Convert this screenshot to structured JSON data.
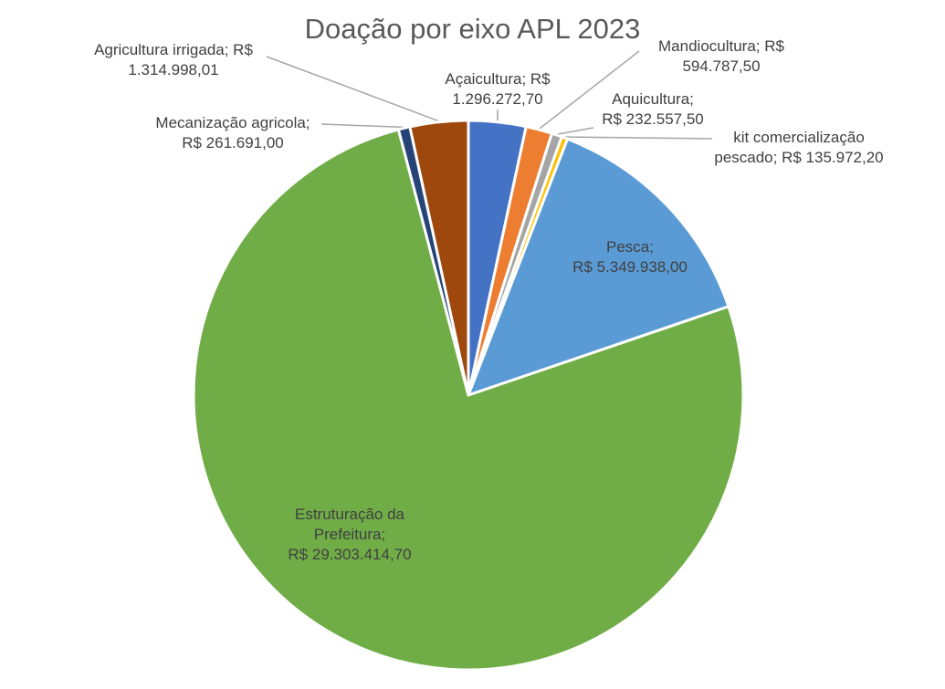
{
  "chart_data": {
    "type": "pie",
    "title": "Doação por eixo APL 2023",
    "slices": [
      {
        "label": "Açaicultura",
        "value": 1296272.7,
        "display_value": "R$ 1.296.272,70",
        "color": "#4472c4"
      },
      {
        "label": "Mandiocultura",
        "value": 594787.5,
        "display_value": "R$ 594.787,50",
        "color": "#ed7d31"
      },
      {
        "label": "Aquicultura",
        "value": 232557.5,
        "display_value": "R$ 232.557,50",
        "color": "#a5a5a5"
      },
      {
        "label": "kit comercialização pescado",
        "value": 135972.2,
        "display_value": "R$ 135.972,20",
        "color": "#ffc000"
      },
      {
        "label": "Pesca",
        "value": 5349938.0,
        "display_value": "R$ 5.349.938,00",
        "color": "#5b9bd5"
      },
      {
        "label": "Estruturação da Prefeitura",
        "value": 29303414.7,
        "display_value": "R$ 29.303.414,70",
        "color": "#70ad47"
      },
      {
        "label": "Mecanização agricola",
        "value": 261691.0,
        "display_value": "R$ 261.691,00",
        "color": "#264478"
      },
      {
        "label": "Agricultura irrigada",
        "value": 1314998.01,
        "display_value": "R$ 1.314.998,01",
        "color": "#9e480e"
      }
    ]
  },
  "labels": {
    "acaicultura": {
      "line1": "Açaicultura; R$",
      "line2": "1.296.272,70"
    },
    "mandiocultura": {
      "line1": "Mandiocultura; R$",
      "line2": "594.787,50"
    },
    "aquicultura": {
      "line1": "Aquicultura;",
      "line2": "R$ 232.557,50"
    },
    "kit": {
      "line1": "kit comercialização",
      "line2": "pescado; R$ 135.972,20"
    },
    "pesca": {
      "line1": "Pesca;",
      "line2": "R$ 5.349.938,00"
    },
    "estruturacao": {
      "line1": "Estruturação da",
      "line2": "Prefeitura;",
      "line3": "R$ 29.303.414,70"
    },
    "mecanizacao": {
      "line1": "Mecanização agricola;",
      "line2": "R$ 261.691,00"
    },
    "agricultura": {
      "line1": "Agricultura irrigada; R$",
      "line2": "1.314.998,01"
    }
  }
}
